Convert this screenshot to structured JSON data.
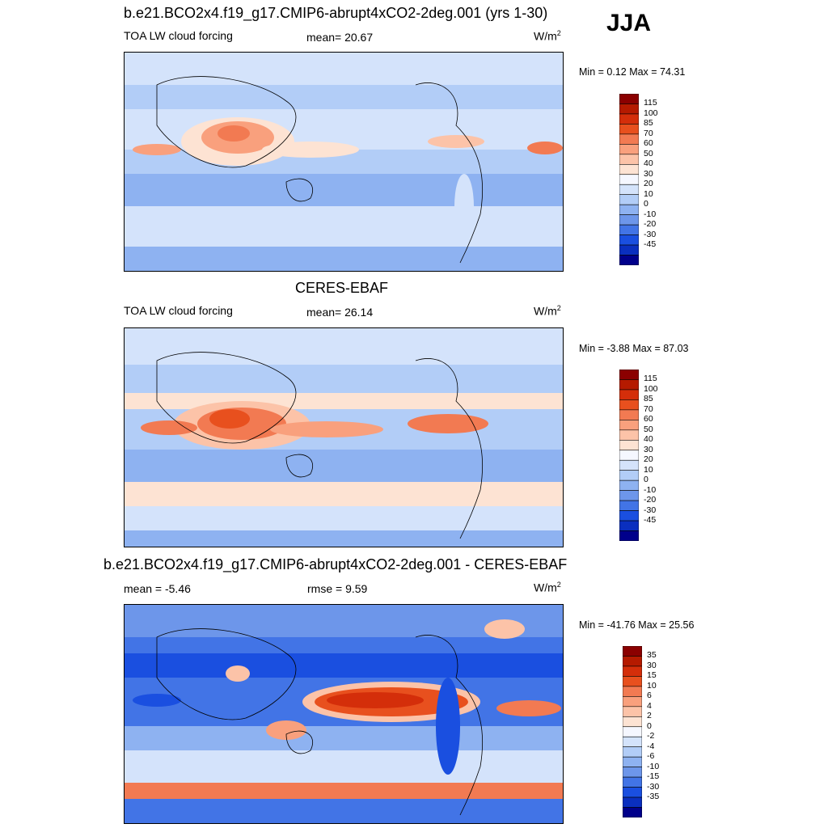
{
  "season": "JJA",
  "panels": [
    {
      "title": "b.e21.BCO2x4.f19_g17.CMIP6-abrupt4xCO2-2deg.001 (yrs 1-30)",
      "variable": "TOA LW cloud forcing",
      "stat1": "mean=  20.67",
      "stat2": "",
      "units": "W/m",
      "units_sup": "2",
      "minmax": "Min =   0.12 Max =  74.31"
    },
    {
      "title": "CERES-EBAF",
      "variable": "TOA LW cloud forcing",
      "stat1": "mean=  26.14",
      "stat2": "",
      "units": "W/m",
      "units_sup": "2",
      "minmax": "Min =  -3.88 Max =  87.03"
    },
    {
      "title": "b.e21.BCO2x4.f19_g17.CMIP6-abrupt4xCO2-2deg.001 - CERES-EBAF",
      "variable": "",
      "stat1": "mean =  -5.46",
      "stat2": "rmse =   9.59",
      "units": "W/m",
      "units_sup": "2",
      "minmax": "Min = -41.76 Max =  25.56"
    }
  ],
  "colorbars": {
    "absolute": {
      "levels": [
        "115",
        "100",
        "85",
        "70",
        "60",
        "50",
        "40",
        "30",
        "20",
        "10",
        "0",
        "-10",
        "-20",
        "-30",
        "-45"
      ],
      "colors": [
        "#8b0000",
        "#b51a00",
        "#d42e0a",
        "#e8501e",
        "#f27a52",
        "#f9a07d",
        "#fcc3a8",
        "#fde3d3",
        "#f5f7ff",
        "#d4e3fb",
        "#b2cdf7",
        "#8eb2f1",
        "#6d96ea",
        "#4274e6",
        "#1a4fe0",
        "#0a2fbf",
        "#00008b"
      ]
    },
    "diff": {
      "levels": [
        "35",
        "30",
        "15",
        "10",
        "6",
        "4",
        "2",
        "0",
        "-2",
        "-4",
        "-6",
        "-10",
        "-15",
        "-30",
        "-35"
      ],
      "colors": [
        "#8b0000",
        "#b51a00",
        "#d42e0a",
        "#e8501e",
        "#f27a52",
        "#f9a07d",
        "#fcc3a8",
        "#fde3d3",
        "#f5f7ff",
        "#d4e3fb",
        "#b2cdf7",
        "#8eb2f1",
        "#6d96ea",
        "#4274e6",
        "#1a4fe0",
        "#0a2fbf",
        "#00008b"
      ]
    }
  }
}
